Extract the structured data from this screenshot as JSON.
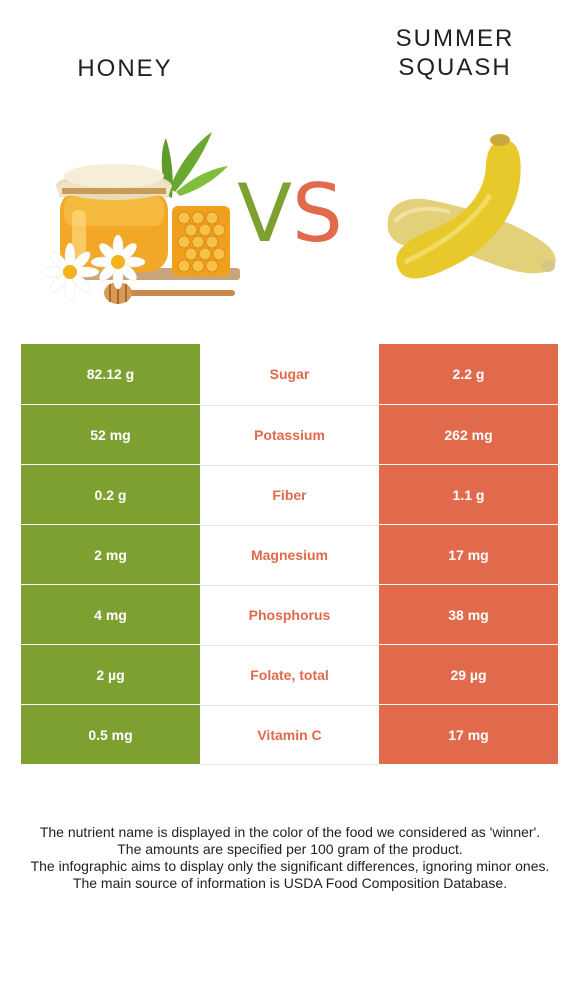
{
  "left_food": {
    "title": "HONEY",
    "image_icon": "honey-jar-with-flowers-and-honeycomb"
  },
  "right_food": {
    "title_line1": "SUMMER",
    "title_line2": "SQUASH",
    "image_icon": "yellow-summer-squash"
  },
  "vs": {
    "v": "V",
    "s": "S"
  },
  "colors": {
    "left": "#7ea030",
    "right": "#e06a4b"
  },
  "rows": [
    {
      "nutrient": "Sugar",
      "left": "82.12 g",
      "right": "2.2 g",
      "winner": "right"
    },
    {
      "nutrient": "Potassium",
      "left": "52 mg",
      "right": "262 mg",
      "winner": "right"
    },
    {
      "nutrient": "Fiber",
      "left": "0.2 g",
      "right": "1.1 g",
      "winner": "right"
    },
    {
      "nutrient": "Magnesium",
      "left": "2 mg",
      "right": "17 mg",
      "winner": "right"
    },
    {
      "nutrient": "Phosphorus",
      "left": "4 mg",
      "right": "38 mg",
      "winner": "right"
    },
    {
      "nutrient": "Folate, total",
      "left": "2 µg",
      "right": "29 µg",
      "winner": "right"
    },
    {
      "nutrient": "Vitamin C",
      "left": "0.5 mg",
      "right": "17 mg",
      "winner": "right"
    }
  ],
  "notes": [
    "The nutrient name is displayed in the color of the food we considered as 'winner'.",
    "The amounts are specified per 100 gram of the product.",
    "The infographic aims to display only the significant differences, ignoring minor ones.",
    "The main source of information is USDA Food Composition Database."
  ]
}
